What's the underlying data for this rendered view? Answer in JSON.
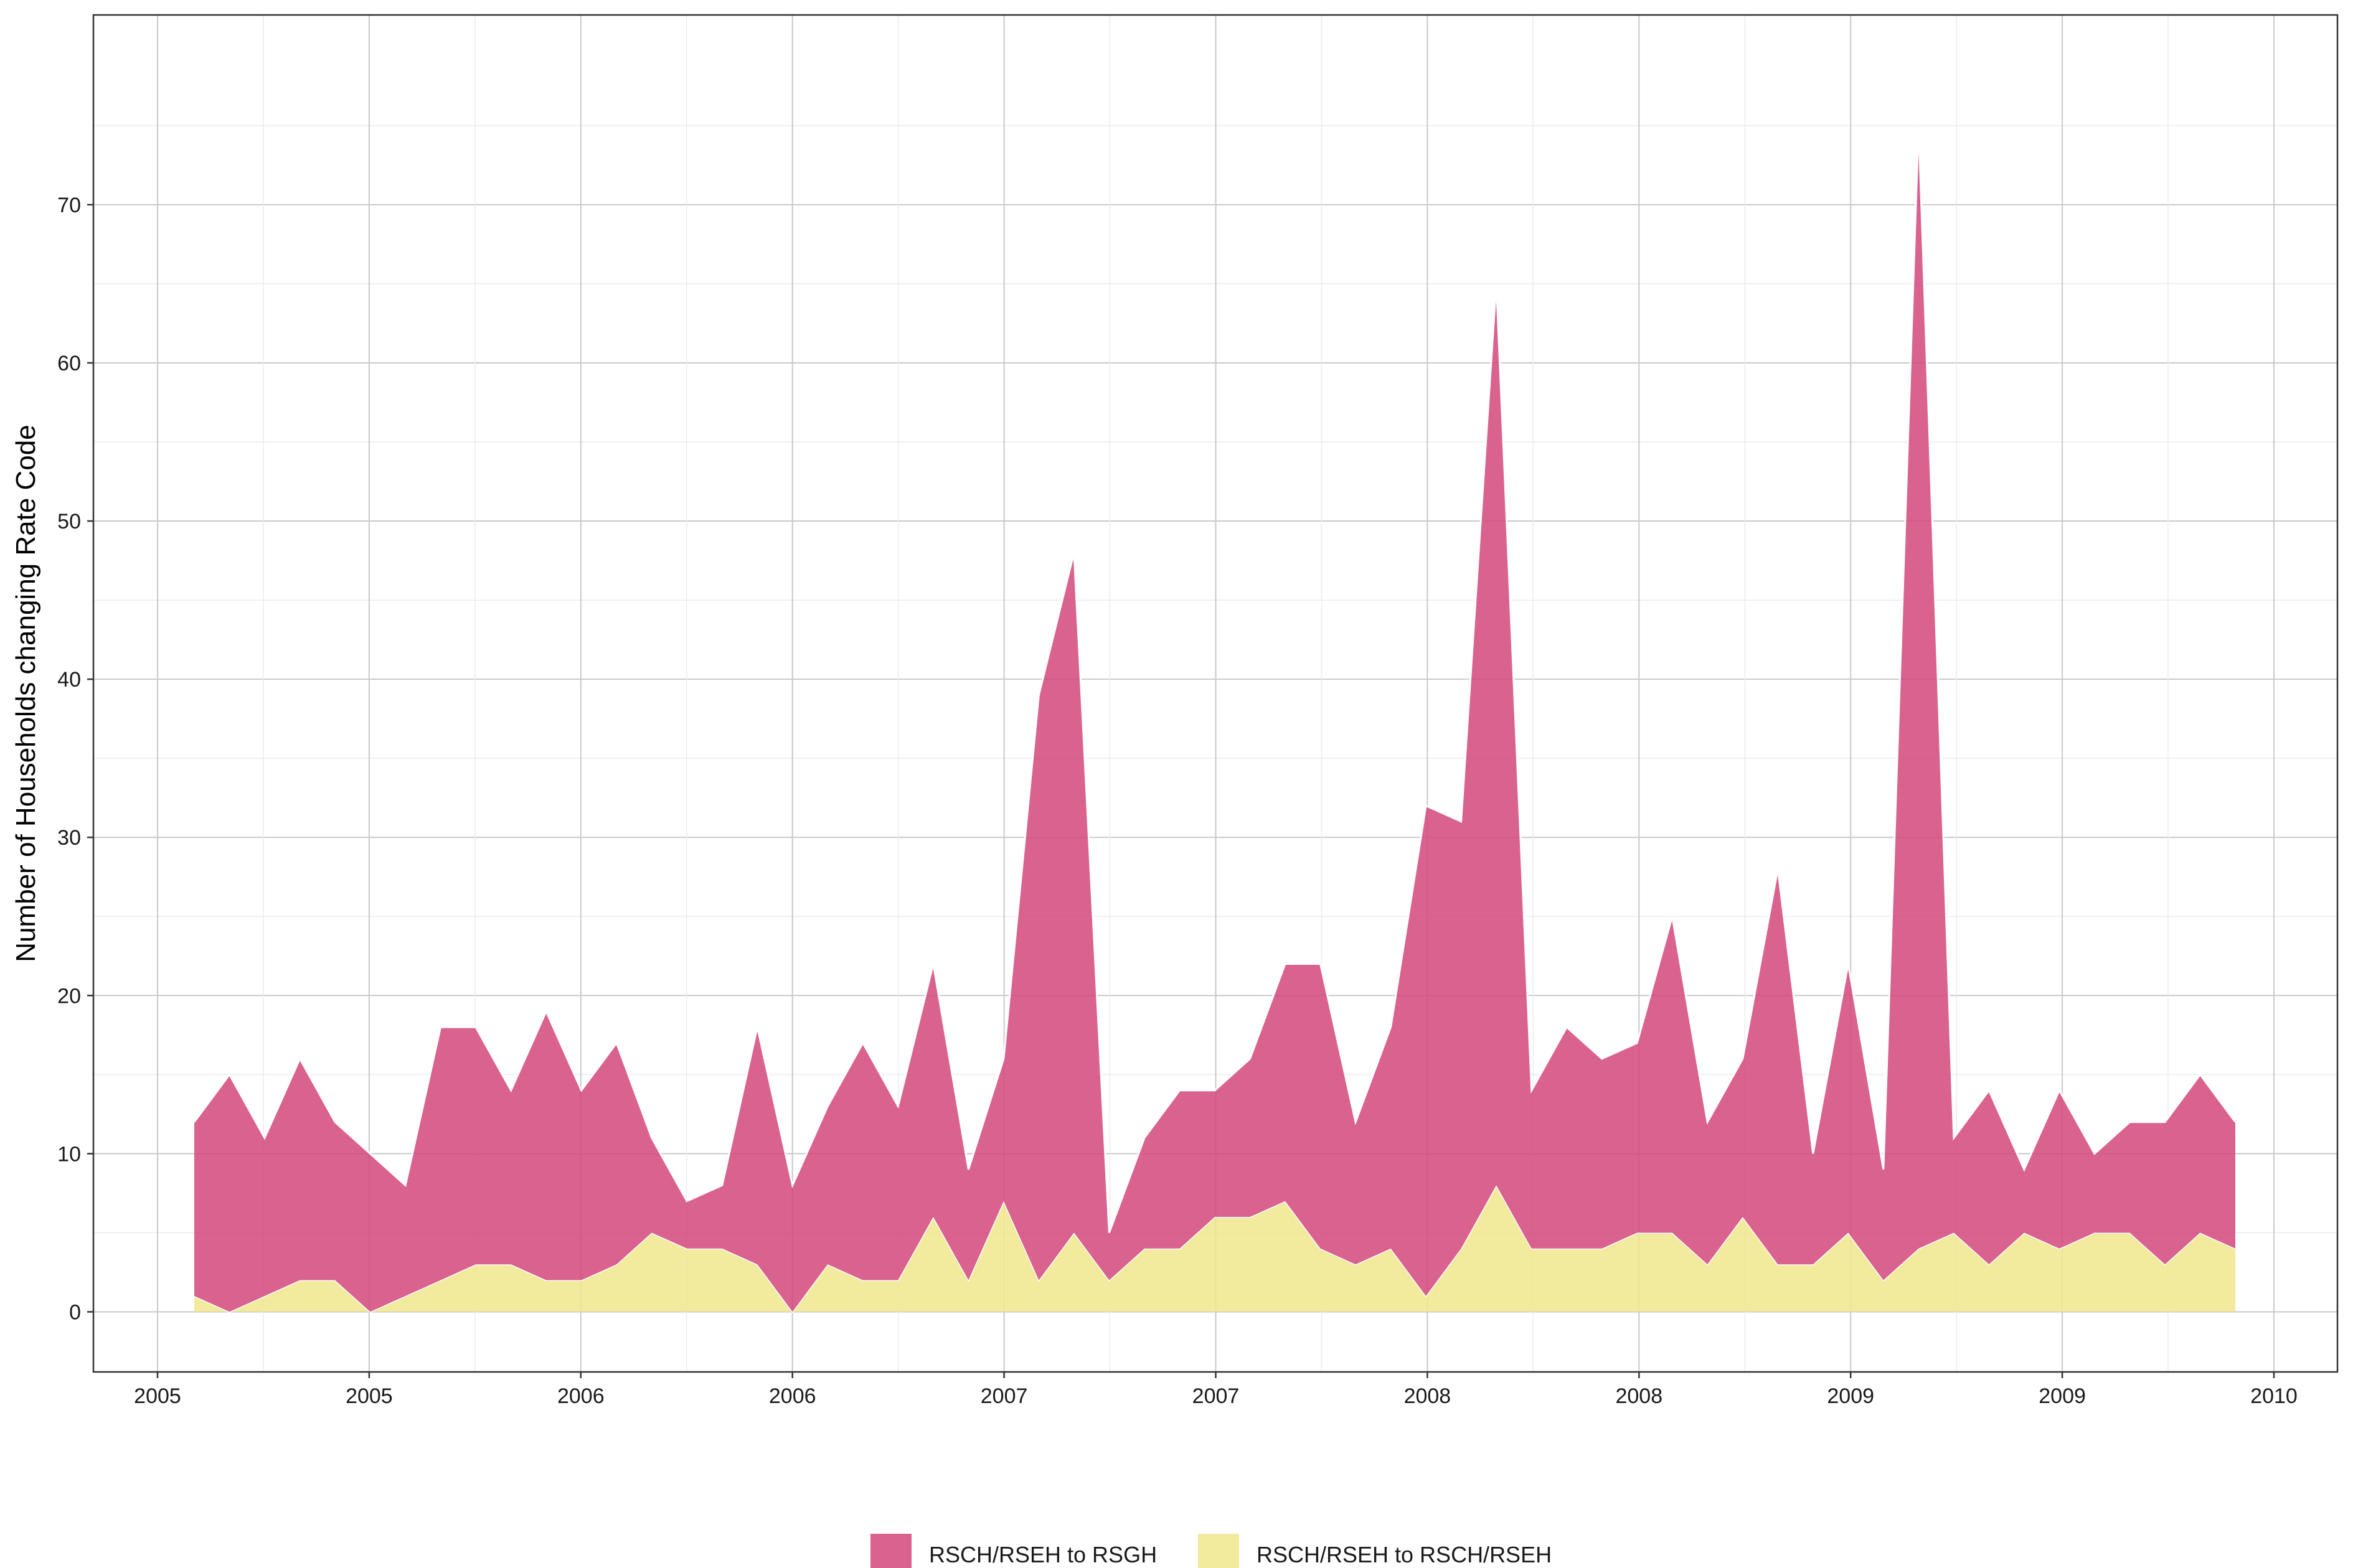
{
  "chart_data": {
    "type": "area",
    "stacked": true,
    "title": "",
    "xlabel": "",
    "ylabel": "Number of Households changing Rate Code",
    "x_tick_labels": [
      "2005",
      "2005",
      "2006",
      "2006",
      "2007",
      "2007",
      "2008",
      "2008",
      "2009",
      "2009",
      "2010"
    ],
    "y_ticks": [
      0,
      10,
      20,
      30,
      40,
      50,
      60,
      70
    ],
    "ylim": [
      -3.8,
      82
    ],
    "grid": true,
    "legend_position": "bottom",
    "series": [
      {
        "name": "RSCH/RSEH to RSCH/RSEH",
        "color": "#f0e68c",
        "values": [
          1,
          0,
          1,
          2,
          2,
          0,
          1,
          2,
          3,
          3,
          2,
          2,
          3,
          5,
          4,
          4,
          3,
          0,
          3,
          2,
          2,
          6,
          2,
          7,
          2,
          5,
          2,
          4,
          4,
          6,
          6,
          7,
          4,
          3,
          4,
          1,
          4,
          8,
          4,
          4,
          4,
          5,
          5,
          3,
          6,
          3,
          3,
          5,
          2,
          4,
          5,
          3,
          5,
          4,
          5,
          5,
          3,
          5,
          4
        ]
      },
      {
        "name": "RSCH/RSEH to RSGH",
        "color": "#d4477a",
        "values": [
          11,
          15,
          10,
          14,
          10,
          10,
          7,
          16,
          15,
          11,
          17,
          12,
          14,
          6,
          3,
          4,
          15,
          8,
          10,
          15,
          11,
          16,
          7,
          9,
          37,
          43,
          3,
          7,
          10,
          8,
          10,
          15,
          18,
          9,
          14,
          31,
          27,
          57,
          10,
          14,
          12,
          12,
          20,
          9,
          10,
          25,
          7,
          17,
          7,
          71,
          6,
          11,
          4,
          10,
          5,
          7,
          9,
          10,
          8
        ]
      }
    ]
  }
}
